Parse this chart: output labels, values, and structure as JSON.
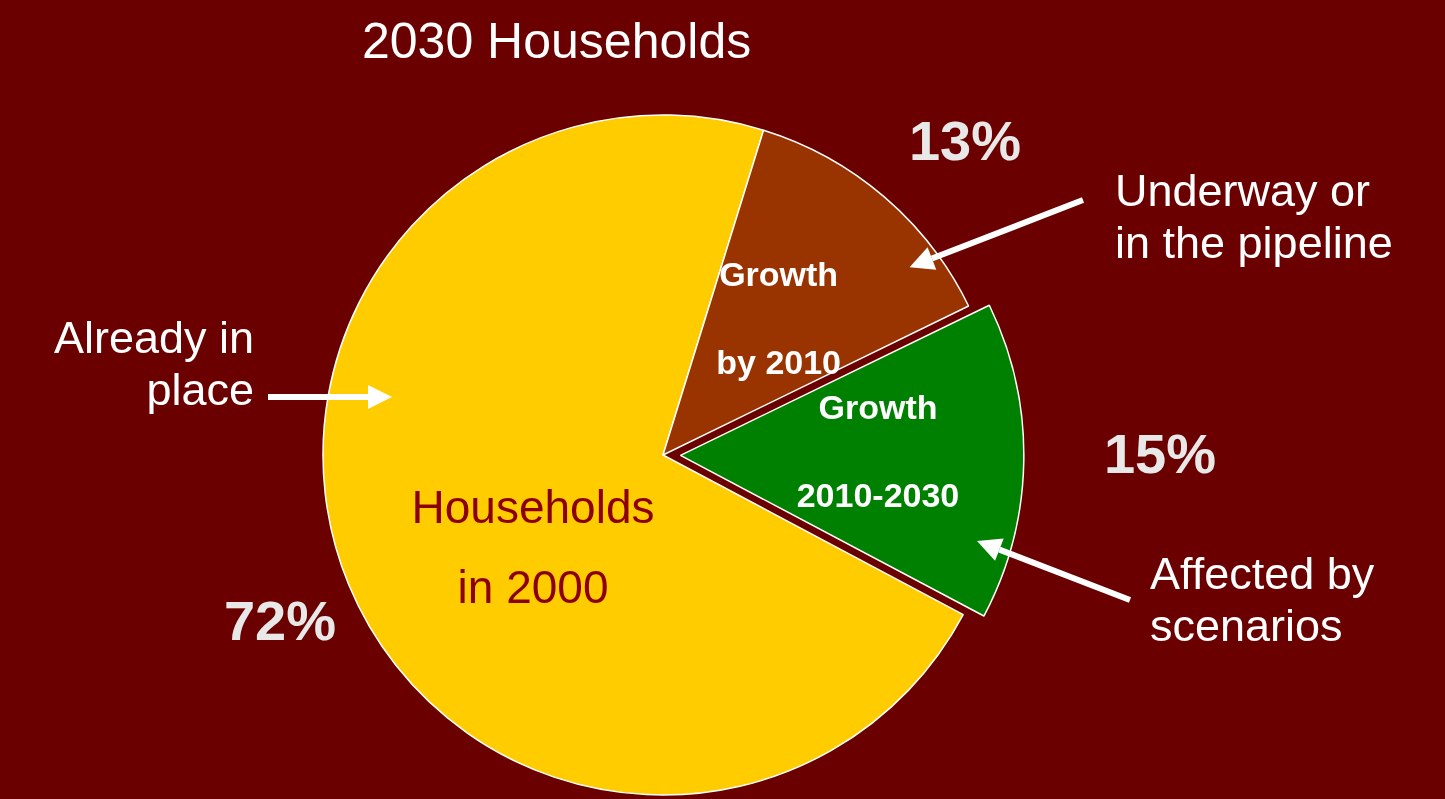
{
  "chart_data": {
    "type": "pie",
    "title": "2030 Households",
    "categories": [
      "Households in 2000",
      "Growth by 2010",
      "Growth 2010-2030"
    ],
    "values": [
      72,
      13,
      15
    ],
    "colors": [
      "#ffcc00",
      "#993300",
      "#008000"
    ],
    "value_labels": [
      "72%",
      "13%",
      "15%"
    ],
    "legend": false,
    "annotations": [
      "Already in place",
      "Underway or in the pipeline",
      "Affected by scenarios"
    ]
  }
}
